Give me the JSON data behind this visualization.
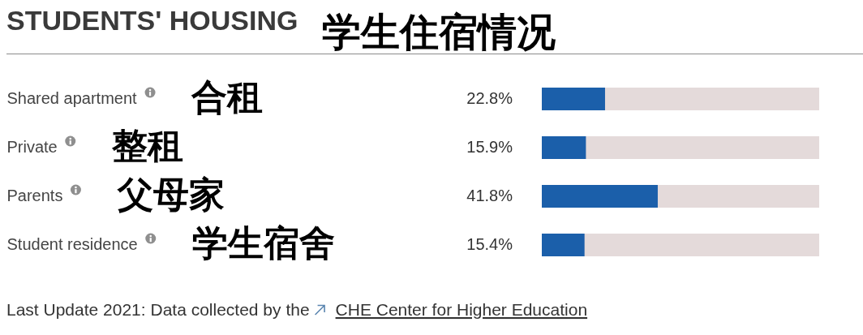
{
  "chart_data": {
    "type": "bar",
    "orientation": "horizontal",
    "title": "STUDENTS' HOUSING",
    "subtitle": "学生住宿情况",
    "categories": [
      "Shared apartment",
      "Private",
      "Parents",
      "Student residence"
    ],
    "values": [
      22.8,
      15.9,
      41.8,
      15.4
    ],
    "color": "#1b5faa",
    "value_labels": [
      "22.8%",
      "15.9%",
      "41.8%",
      "15.4%"
    ],
    "xlim": [
      0,
      100
    ],
    "tick_labels": "y",
    "annotations": [
      "合租",
      "整租",
      "父母家",
      "学生宿舍",
      "Last Update 2021: Data collected by the",
      "CHE Center for Higher Education"
    ]
  }
}
